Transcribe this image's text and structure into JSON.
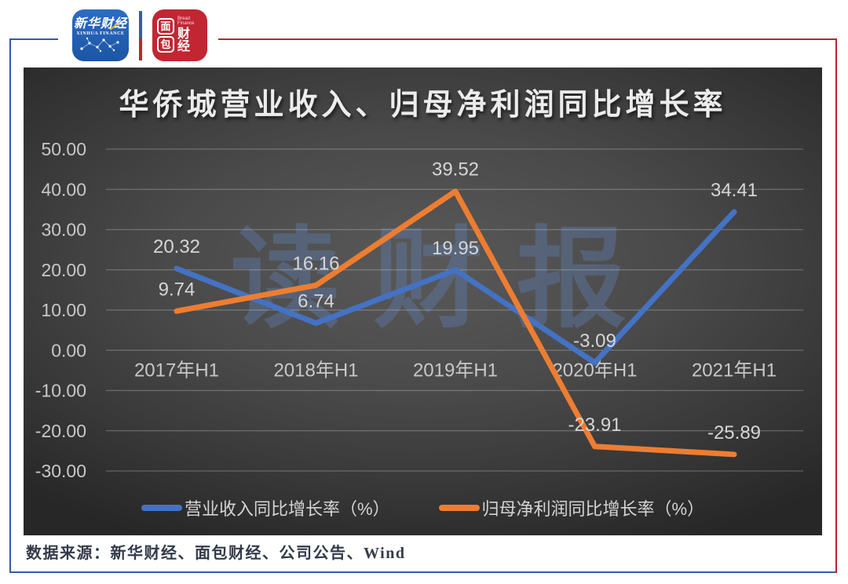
{
  "frame": {
    "blue": "#2e5fa8",
    "red": "#c0232e"
  },
  "logos": {
    "xinhua": {
      "title": "新华财经",
      "subtitle": "XINHUA FINANCE",
      "bg": "#1f5fb0"
    },
    "bread": {
      "char_top": "面",
      "char_bottom": "包",
      "char_right": "财经",
      "subtitle": "Bread Finance",
      "bg": "#c22633"
    }
  },
  "watermark": {
    "text": "读财报"
  },
  "footer": {
    "source_text": "数据来源：新华财经、面包财经、公司公告、Wind"
  },
  "chart_data": {
    "type": "line",
    "title": "华侨城营业收入、归母净利润同比增长率",
    "categories": [
      "2017年H1",
      "2018年H1",
      "2019年H1",
      "2020年H1",
      "2021年H1"
    ],
    "series": [
      {
        "name": "营业收入同比增长率（%）",
        "color": "#4472C4",
        "values": [
          20.32,
          6.74,
          19.95,
          -3.09,
          34.41
        ]
      },
      {
        "name": "归母净利润同比增长率（%）",
        "color": "#ED7D31",
        "values": [
          9.74,
          16.16,
          39.52,
          -23.91,
          -25.89
        ]
      }
    ],
    "y_axis": {
      "min": -30,
      "max": 50,
      "step": 10,
      "tick_labels": [
        "50.00",
        "40.00",
        "30.00",
        "20.00",
        "10.00",
        "0.00",
        "-10.00",
        "-20.00",
        "-30.00"
      ]
    },
    "xlabel": "",
    "ylabel": "",
    "grid": true,
    "legend_position": "bottom",
    "data_label_color": "#d6d6d6",
    "axis_label_color": "#c8c8c8"
  }
}
